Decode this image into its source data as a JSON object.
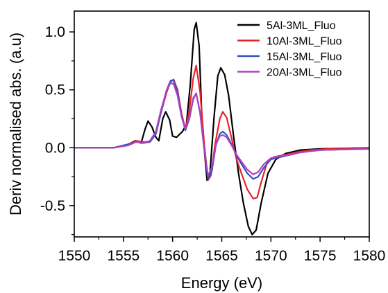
{
  "chart_data": {
    "type": "line",
    "xlabel": "Energy (eV)",
    "ylabel": "Deriv normalised abs. (a.u)",
    "xlim": [
      1550,
      1580
    ],
    "ylim": [
      -0.77,
      1.18
    ],
    "xticks": [
      1550,
      1555,
      1560,
      1565,
      1570,
      1575,
      1580
    ],
    "yticks": [
      -0.5,
      0.0,
      0.5,
      1.0
    ],
    "xtick_labels": [
      "1550",
      "1555",
      "1560",
      "1565",
      "1570",
      "1575",
      "1580"
    ],
    "ytick_labels": [
      "-0.5",
      "0.0",
      "0.5",
      "1.0"
    ],
    "grid": false,
    "legend_position": "top-right",
    "series": [
      {
        "name": "5Al-3ML_Fluo",
        "color": "#000000",
        "points": [
          [
            1550,
            0
          ],
          [
            1554,
            0
          ],
          [
            1555.5,
            0.03
          ],
          [
            1556.2,
            0.06
          ],
          [
            1556.8,
            0.04
          ],
          [
            1557.2,
            0.16
          ],
          [
            1557.5,
            0.23
          ],
          [
            1557.9,
            0.18
          ],
          [
            1558.3,
            0.09
          ],
          [
            1558.6,
            0.06
          ],
          [
            1559.0,
            0.25
          ],
          [
            1559.3,
            0.31
          ],
          [
            1559.7,
            0.24
          ],
          [
            1560.0,
            0.1
          ],
          [
            1560.4,
            0.09
          ],
          [
            1561.0,
            0.14
          ],
          [
            1561.4,
            0.2
          ],
          [
            1561.8,
            0.55
          ],
          [
            1562.2,
            1.02
          ],
          [
            1562.4,
            1.08
          ],
          [
            1562.7,
            0.88
          ],
          [
            1563.0,
            0.2
          ],
          [
            1563.5,
            -0.28
          ],
          [
            1563.8,
            -0.22
          ],
          [
            1564.2,
            0.25
          ],
          [
            1564.6,
            0.62
          ],
          [
            1564.9,
            0.69
          ],
          [
            1565.3,
            0.63
          ],
          [
            1565.7,
            0.45
          ],
          [
            1566.2,
            0.1
          ],
          [
            1566.7,
            -0.22
          ],
          [
            1567.2,
            -0.48
          ],
          [
            1567.7,
            -0.68
          ],
          [
            1568.1,
            -0.75
          ],
          [
            1568.5,
            -0.71
          ],
          [
            1569.0,
            -0.48
          ],
          [
            1569.7,
            -0.22
          ],
          [
            1570.5,
            -0.1
          ],
          [
            1571.5,
            -0.05
          ],
          [
            1573,
            -0.02
          ],
          [
            1575,
            -0.01
          ],
          [
            1580,
            0
          ]
        ]
      },
      {
        "name": "10Al-3ML_Fluo",
        "color": "#e8232a",
        "points": [
          [
            1550,
            0
          ],
          [
            1554,
            0
          ],
          [
            1555.5,
            0.03
          ],
          [
            1556.3,
            0.06
          ],
          [
            1557.0,
            0.05
          ],
          [
            1557.7,
            0.05
          ],
          [
            1558.3,
            0.12
          ],
          [
            1558.8,
            0.3
          ],
          [
            1559.4,
            0.48
          ],
          [
            1559.8,
            0.57
          ],
          [
            1560.1,
            0.59
          ],
          [
            1560.5,
            0.5
          ],
          [
            1560.9,
            0.3
          ],
          [
            1561.3,
            0.16
          ],
          [
            1561.7,
            0.32
          ],
          [
            1562.1,
            0.6
          ],
          [
            1562.4,
            0.71
          ],
          [
            1562.8,
            0.48
          ],
          [
            1563.2,
            0.05
          ],
          [
            1563.6,
            -0.28
          ],
          [
            1563.9,
            -0.24
          ],
          [
            1564.3,
            0.02
          ],
          [
            1564.8,
            0.25
          ],
          [
            1565.1,
            0.31
          ],
          [
            1565.5,
            0.26
          ],
          [
            1566.0,
            0.08
          ],
          [
            1566.5,
            -0.1
          ],
          [
            1567.0,
            -0.22
          ],
          [
            1567.6,
            -0.36
          ],
          [
            1568.2,
            -0.44
          ],
          [
            1568.6,
            -0.43
          ],
          [
            1569.0,
            -0.3
          ],
          [
            1569.6,
            -0.13
          ],
          [
            1570.3,
            -0.08
          ],
          [
            1571.5,
            -0.06
          ],
          [
            1572.5,
            -0.04
          ],
          [
            1574,
            -0.02
          ],
          [
            1576,
            -0.01
          ],
          [
            1580,
            0
          ]
        ]
      },
      {
        "name": "15Al-3ML_Fluo",
        "color": "#3050c0",
        "points": [
          [
            1550,
            0
          ],
          [
            1554,
            0
          ],
          [
            1555.5,
            0.03
          ],
          [
            1556.3,
            0.05
          ],
          [
            1557.0,
            0.04
          ],
          [
            1557.7,
            0.05
          ],
          [
            1558.3,
            0.12
          ],
          [
            1558.8,
            0.3
          ],
          [
            1559.4,
            0.5
          ],
          [
            1559.8,
            0.58
          ],
          [
            1560.1,
            0.58
          ],
          [
            1560.5,
            0.48
          ],
          [
            1560.9,
            0.28
          ],
          [
            1561.3,
            0.15
          ],
          [
            1561.7,
            0.25
          ],
          [
            1562.1,
            0.42
          ],
          [
            1562.4,
            0.47
          ],
          [
            1562.8,
            0.3
          ],
          [
            1563.2,
            0.0
          ],
          [
            1563.6,
            -0.27
          ],
          [
            1564.0,
            -0.2
          ],
          [
            1564.4,
            0.02
          ],
          [
            1564.8,
            0.12
          ],
          [
            1565.1,
            0.14
          ],
          [
            1565.5,
            0.11
          ],
          [
            1566.0,
            0.03
          ],
          [
            1566.5,
            -0.07
          ],
          [
            1567.0,
            -0.14
          ],
          [
            1567.6,
            -0.22
          ],
          [
            1568.2,
            -0.27
          ],
          [
            1568.7,
            -0.25
          ],
          [
            1569.3,
            -0.17
          ],
          [
            1570.0,
            -0.1
          ],
          [
            1571.0,
            -0.08
          ],
          [
            1572.0,
            -0.06
          ],
          [
            1573,
            -0.04
          ],
          [
            1575,
            -0.02
          ],
          [
            1580,
            -0.01
          ]
        ]
      },
      {
        "name": "20Al-3ML_Fluo",
        "color": "#b040c0",
        "points": [
          [
            1550,
            0
          ],
          [
            1554,
            0
          ],
          [
            1555.5,
            0.02
          ],
          [
            1556.3,
            0.05
          ],
          [
            1557.0,
            0.04
          ],
          [
            1557.7,
            0.06
          ],
          [
            1558.3,
            0.14
          ],
          [
            1558.8,
            0.32
          ],
          [
            1559.4,
            0.5
          ],
          [
            1559.8,
            0.56
          ],
          [
            1560.1,
            0.55
          ],
          [
            1560.5,
            0.45
          ],
          [
            1560.9,
            0.27
          ],
          [
            1561.3,
            0.16
          ],
          [
            1561.7,
            0.26
          ],
          [
            1562.1,
            0.43
          ],
          [
            1562.4,
            0.47
          ],
          [
            1562.8,
            0.3
          ],
          [
            1563.2,
            0.0
          ],
          [
            1563.6,
            -0.24
          ],
          [
            1564.0,
            -0.17
          ],
          [
            1564.4,
            0.03
          ],
          [
            1564.8,
            0.1
          ],
          [
            1565.1,
            0.11
          ],
          [
            1565.5,
            0.09
          ],
          [
            1566.0,
            0.02
          ],
          [
            1566.5,
            -0.06
          ],
          [
            1567.0,
            -0.12
          ],
          [
            1567.6,
            -0.19
          ],
          [
            1568.2,
            -0.23
          ],
          [
            1568.7,
            -0.21
          ],
          [
            1569.3,
            -0.14
          ],
          [
            1570.0,
            -0.09
          ],
          [
            1571.0,
            -0.07
          ],
          [
            1572.0,
            -0.06
          ],
          [
            1573,
            -0.04
          ],
          [
            1575,
            -0.02
          ],
          [
            1580,
            -0.01
          ]
        ]
      }
    ]
  }
}
